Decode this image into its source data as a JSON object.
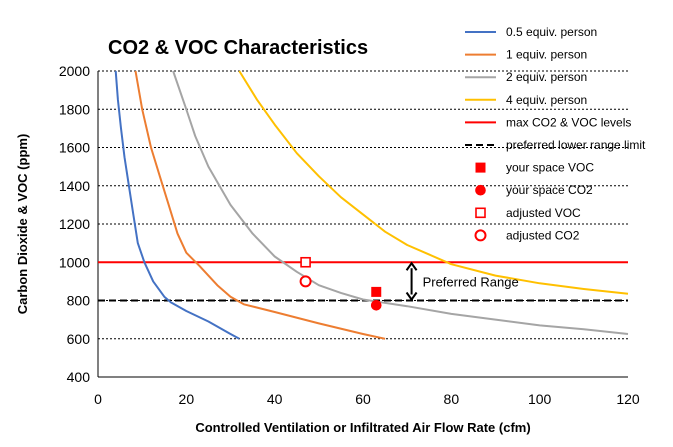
{
  "chart_data": {
    "type": "line",
    "title": "CO2 & VOC Characteristics",
    "xlabel": "Controlled Ventilation or Infiltrated Air Flow Rate (cfm)",
    "ylabel": "Carbon Dioxide & VOC (ppm)",
    "xlim": [
      0,
      120
    ],
    "ylim": [
      400,
      2000
    ],
    "x_ticks": [
      "0",
      "20",
      "40",
      "60",
      "80",
      "100",
      "120"
    ],
    "y_ticks": [
      "400",
      "600",
      "800",
      "1000",
      "1200",
      "1400",
      "1600",
      "1800",
      "2000"
    ],
    "grid": "horizontal dashed",
    "legend_position": "right",
    "series": [
      {
        "name": "0.5 equiv. person",
        "color": "#4472C4",
        "points": [
          [
            4.0,
            2000
          ],
          [
            4.5,
            1850
          ],
          [
            5.2,
            1700
          ],
          [
            6.0,
            1550
          ],
          [
            7.0,
            1400
          ],
          [
            8.0,
            1250
          ],
          [
            9.0,
            1100
          ],
          [
            10.5,
            1000
          ],
          [
            12.5,
            900
          ],
          [
            15.0,
            820
          ],
          [
            16.5,
            790
          ],
          [
            20.0,
            745
          ],
          [
            25.0,
            690
          ],
          [
            30.0,
            625
          ],
          [
            32.0,
            600
          ]
        ]
      },
      {
        "name": "1 equiv.  person",
        "color": "#ED7D31",
        "points": [
          [
            8.5,
            2000
          ],
          [
            10.0,
            1800
          ],
          [
            12.0,
            1600
          ],
          [
            14.0,
            1450
          ],
          [
            16.0,
            1300
          ],
          [
            18.0,
            1150
          ],
          [
            20.0,
            1050
          ],
          [
            23.0,
            980
          ],
          [
            27.0,
            880
          ],
          [
            30.0,
            820
          ],
          [
            33.0,
            780
          ],
          [
            40.0,
            740
          ],
          [
            50.0,
            680
          ],
          [
            60.0,
            625
          ],
          [
            65.0,
            600
          ]
        ]
      },
      {
        "name": "2 equiv. person",
        "color": "#A5A5A5",
        "points": [
          [
            17.0,
            2000
          ],
          [
            20.0,
            1800
          ],
          [
            22.0,
            1660
          ],
          [
            25.0,
            1500
          ],
          [
            30.0,
            1300
          ],
          [
            35.0,
            1150
          ],
          [
            40.0,
            1030
          ],
          [
            45.0,
            950
          ],
          [
            50.0,
            880
          ],
          [
            55.0,
            840
          ],
          [
            60.0,
            805
          ],
          [
            70.0,
            770
          ],
          [
            80.0,
            730
          ],
          [
            90.0,
            700
          ],
          [
            100.0,
            670
          ],
          [
            110.0,
            650
          ],
          [
            120.0,
            625
          ]
        ]
      },
      {
        "name": "4 equiv. person",
        "color": "#FFC000",
        "points": [
          [
            32.0,
            2000
          ],
          [
            36.0,
            1850
          ],
          [
            40.0,
            1720
          ],
          [
            45.0,
            1570
          ],
          [
            50.0,
            1450
          ],
          [
            55.0,
            1340
          ],
          [
            60.0,
            1250
          ],
          [
            65.0,
            1160
          ],
          [
            70.0,
            1090
          ],
          [
            75.0,
            1040
          ],
          [
            80.0,
            990
          ],
          [
            90.0,
            930
          ],
          [
            100.0,
            890
          ],
          [
            110.0,
            860
          ],
          [
            120.0,
            835
          ]
        ]
      }
    ],
    "reference_lines": [
      {
        "name": "max CO2 & VOC levels",
        "y": 1000,
        "color": "#FF0000",
        "style": "solid"
      },
      {
        "name": "preferred lower range limit",
        "y": 800,
        "color": "#000000",
        "style": "dashed"
      }
    ],
    "markers": [
      {
        "name": "your space VOC",
        "x": 63,
        "y": 845,
        "shape": "square-filled",
        "color": "#FF0000"
      },
      {
        "name": "your space CO2",
        "x": 63,
        "y": 775,
        "shape": "circle-filled",
        "color": "#FF0000"
      },
      {
        "name": "adjusted VOC",
        "x": 47,
        "y": 1000,
        "shape": "square-open",
        "color": "#FF0000"
      },
      {
        "name": "adjusted CO2",
        "x": 47,
        "y": 900,
        "shape": "circle-open",
        "color": "#FF0000"
      }
    ],
    "annotation": {
      "text": "Preferred Range",
      "x": 71,
      "y_from": 800,
      "y_to": 1000
    }
  }
}
